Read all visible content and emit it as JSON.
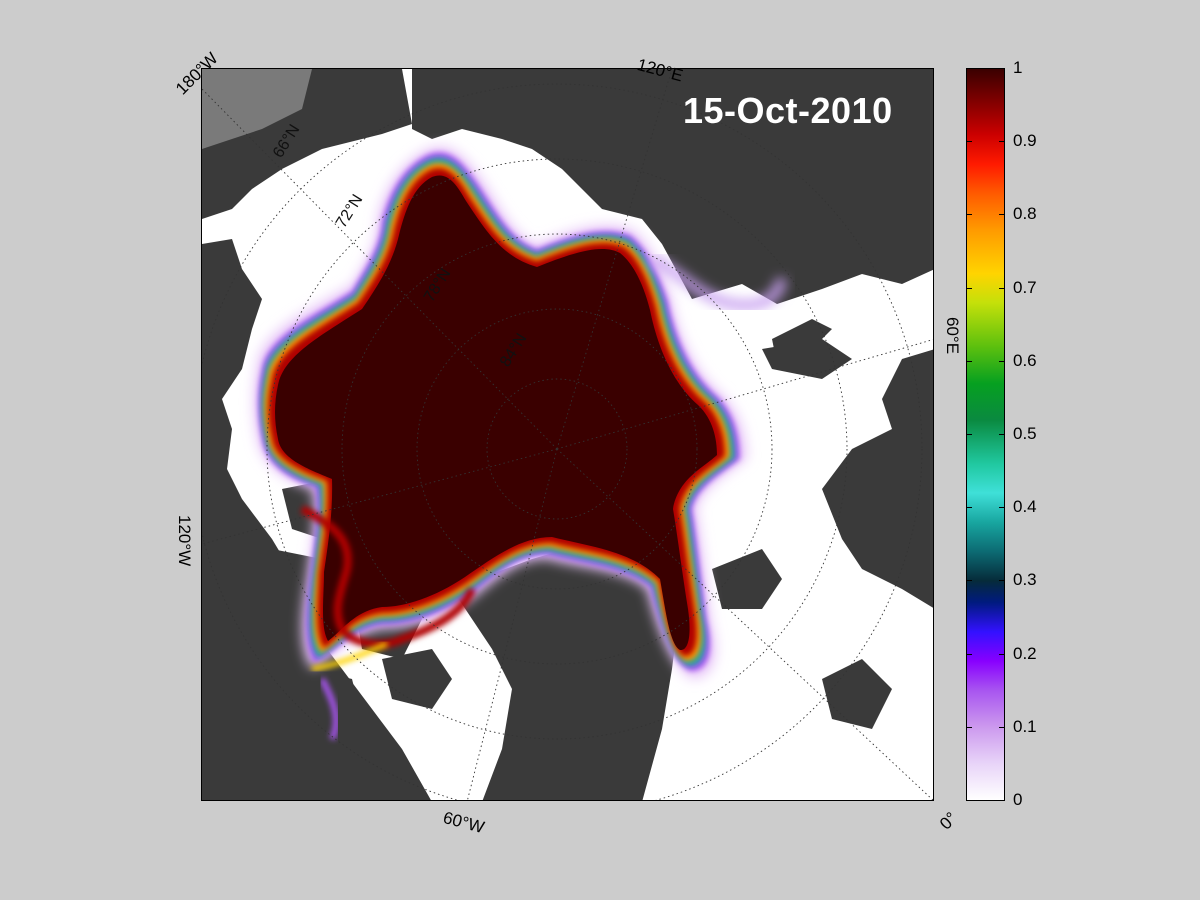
{
  "date": "15-Oct-2010",
  "longitude_labels": [
    "180°W",
    "120°E",
    "60°E",
    "0°",
    "60°W",
    "120°W"
  ],
  "latitude_labels": [
    "66°N",
    "72°N",
    "78°N",
    "84°N"
  ],
  "colorbar": {
    "ticks": [
      "1",
      "0.9",
      "0.8",
      "0.7",
      "0.6",
      "0.5",
      "0.4",
      "0.3",
      "0.2",
      "0.1",
      "0"
    ],
    "range": [
      0,
      1
    ]
  },
  "colors": {
    "background": "#cccccc",
    "land": "#3a3a3a",
    "ocean_open": "#ffffff",
    "ice_full": "#3a0000",
    "ice_edge": "#a855f0"
  }
}
